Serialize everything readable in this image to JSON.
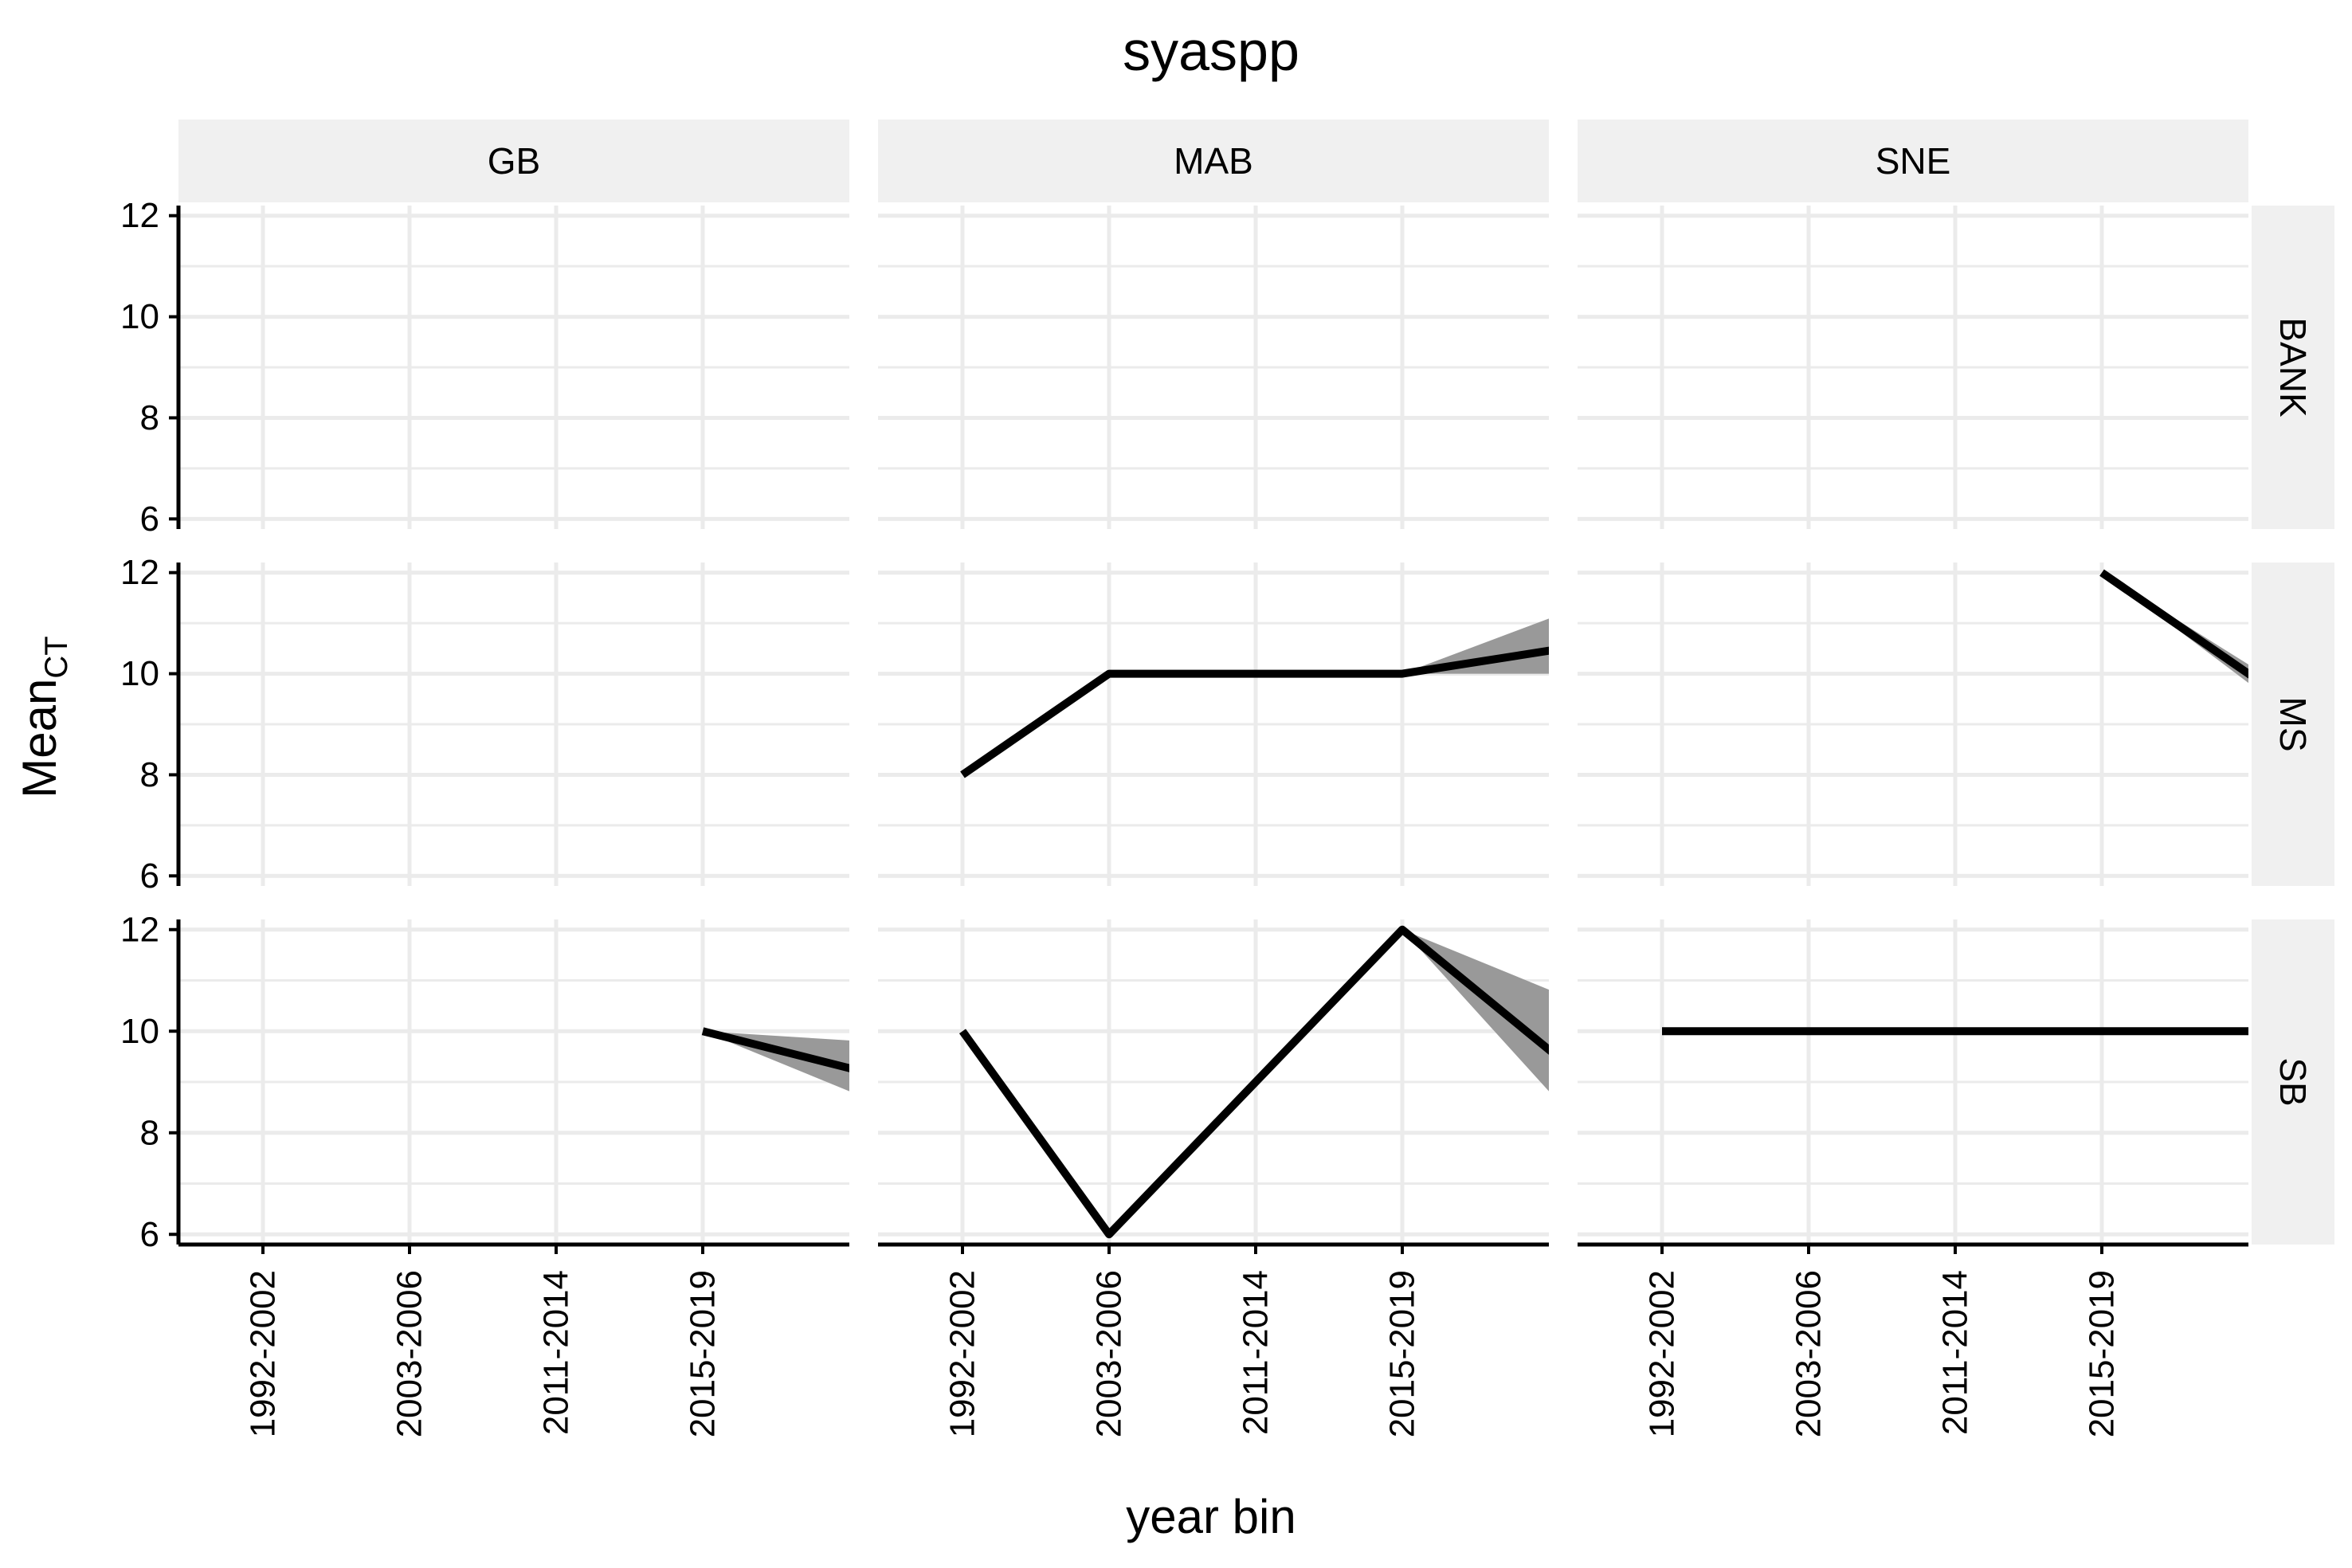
{
  "chart_data": {
    "type": "line",
    "title": "syaspp",
    "xlabel": "year bin",
    "ylabel": "Mean",
    "ylabel_subscript": "CT",
    "x_categories": [
      "1992-2002",
      "2003-2006",
      "2011-2014",
      "2015-2019"
    ],
    "ylim": [
      5.8,
      12.2
    ],
    "yticks": [
      6,
      8,
      10,
      12
    ],
    "grid": true,
    "columns": [
      "GB",
      "MAB",
      "SNE"
    ],
    "rows": [
      "BANK",
      "MS",
      "SB"
    ],
    "panels": [
      {
        "column": "GB",
        "row": "BANK",
        "line": [],
        "ribbon": []
      },
      {
        "column": "MAB",
        "row": "BANK",
        "line": [],
        "ribbon": []
      },
      {
        "column": "SNE",
        "row": "BANK",
        "line": [],
        "ribbon": []
      },
      {
        "column": "GB",
        "row": "MS",
        "line": [],
        "ribbon": []
      },
      {
        "column": "MAB",
        "row": "MS",
        "line": [
          {
            "x": 1,
            "y": 8
          },
          {
            "x": 2,
            "y": 10
          },
          {
            "x": 3,
            "y": 10
          },
          {
            "x": 4,
            "y": 10
          },
          {
            "x": 5.1,
            "y": 10.5
          }
        ],
        "ribbon": [
          {
            "x": 4,
            "lo": 10,
            "hi": 10
          },
          {
            "x": 5.1,
            "lo": 10.0,
            "hi": 11.2
          }
        ]
      },
      {
        "column": "SNE",
        "row": "MS",
        "line": [
          {
            "x": 4,
            "y": 12
          },
          {
            "x": 5.1,
            "y": 9.8
          }
        ],
        "ribbon": [
          {
            "x": 4,
            "lo": 12,
            "hi": 12
          },
          {
            "x": 5.1,
            "lo": 9.6,
            "hi": 10.0
          }
        ]
      },
      {
        "column": "GB",
        "row": "SB",
        "line": [
          {
            "x": 4,
            "y": 10
          },
          {
            "x": 5.1,
            "y": 9.2
          }
        ],
        "ribbon": [
          {
            "x": 4,
            "lo": 10,
            "hi": 10
          },
          {
            "x": 5.1,
            "lo": 8.7,
            "hi": 9.8
          }
        ]
      },
      {
        "column": "MAB",
        "row": "SB",
        "line": [
          {
            "x": 1,
            "y": 10
          },
          {
            "x": 2,
            "y": 6
          },
          {
            "x": 3,
            "y": 9
          },
          {
            "x": 4,
            "y": 12
          },
          {
            "x": 5.1,
            "y": 9.4
          }
        ],
        "ribbon": [
          {
            "x": 4,
            "lo": 12,
            "hi": 12
          },
          {
            "x": 5.1,
            "lo": 8.5,
            "hi": 10.7
          }
        ]
      },
      {
        "column": "SNE",
        "row": "SB",
        "line": [
          {
            "x": 1,
            "y": 10
          },
          {
            "x": 2,
            "y": 10
          },
          {
            "x": 3,
            "y": 10
          },
          {
            "x": 4,
            "y": 10
          },
          {
            "x": 5.1,
            "y": 10
          }
        ],
        "ribbon": []
      }
    ],
    "colors": {
      "line": "#000000",
      "ribbon": "#999999",
      "grid": "#ebebeb",
      "strip": "#f0f0f0"
    }
  }
}
